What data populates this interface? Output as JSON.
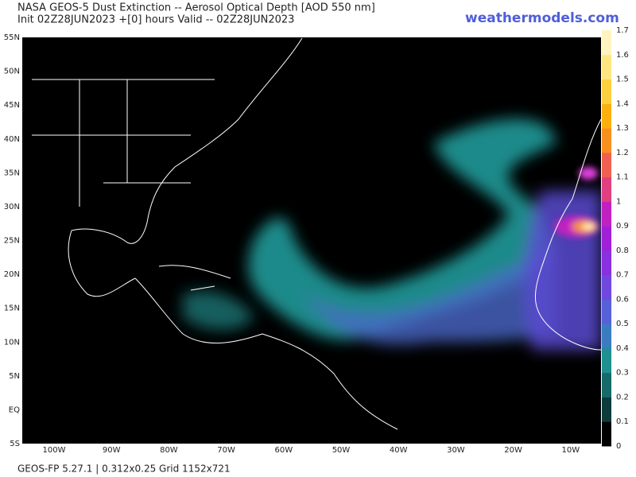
{
  "header": {
    "title": "NASA GEOS-5 Dust Extinction -- Aerosol Optical Depth [AOD 550 nm]",
    "subtitle": "Init 02Z28JUN2023 +[0] hours Valid -- 02Z28JUN2023",
    "site": "weathermodels.com"
  },
  "map": {
    "lat_labels": [
      "55N",
      "50N",
      "45N",
      "40N",
      "35N",
      "30N",
      "25N",
      "20N",
      "15N",
      "10N",
      "5N",
      "EQ",
      "5S"
    ],
    "lon_labels": [
      "100W",
      "90W",
      "80W",
      "70W",
      "60W",
      "50W",
      "40W",
      "30W",
      "20W",
      "10W"
    ]
  },
  "colorbar": {
    "labels": [
      "0",
      "0.1",
      "0.2",
      "0.3",
      "0.4",
      "0.5",
      "0.6",
      "0.7",
      "0.8",
      "0.9",
      "1",
      "1.1",
      "1.2",
      "1.3",
      "1.4",
      "1.5",
      "1.6",
      "1.7"
    ],
    "colors": [
      "#000000",
      "#0d3b3b",
      "#156a6a",
      "#1f9090",
      "#3a7cc0",
      "#5660d8",
      "#7048e0",
      "#8a30e0",
      "#a020d8",
      "#c020c0",
      "#e04080",
      "#f06050",
      "#f89020",
      "#fcb010",
      "#fdd040",
      "#fee680",
      "#fff4c0"
    ]
  },
  "footer": {
    "text": "GEOS-FP 5.27.1 | 0.312x0.25 Grid 1152x721"
  }
}
